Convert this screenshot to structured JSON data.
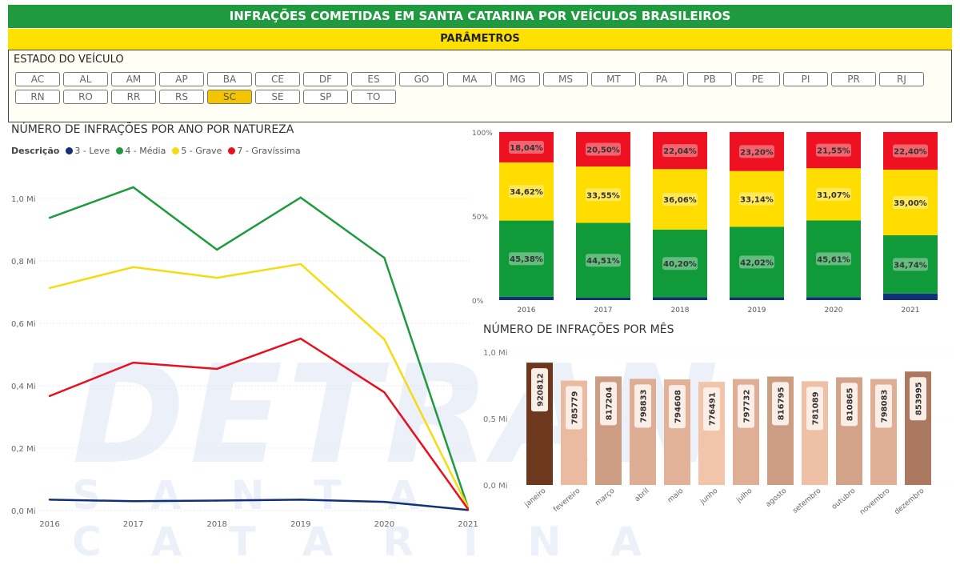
{
  "header": {
    "title": "INFRAÇÕES COMETIDAS EM SANTA CATARINA POR VEÍCULOS BRASILEIROS",
    "params": "PARÂMETROS"
  },
  "watermark": {
    "line1": "DETRAN",
    "line2": "SANTA CATARINA"
  },
  "filter": {
    "label": "ESTADO DO VEÍCULO",
    "selected": "SC",
    "states": [
      "AC",
      "AL",
      "AM",
      "AP",
      "BA",
      "CE",
      "DF",
      "ES",
      "GO",
      "MA",
      "MG",
      "MS",
      "MT",
      "PA",
      "PB",
      "PE",
      "PI",
      "PR",
      "RJ",
      "RN",
      "RO",
      "RR",
      "RS",
      "SC",
      "SE",
      "SP",
      "TO"
    ]
  },
  "colors": {
    "leve": "#12307a",
    "media": "#1f9a3e",
    "grave": "#f5dc10",
    "gravissima": "#e8101e",
    "green": "#1f9a3e",
    "yellow": "#ffe100"
  },
  "chart_data": [
    {
      "type": "line",
      "title": "NÚMERO DE INFRAÇÕES POR ANO POR NATUREZA",
      "legend_title": "Descrição",
      "legend": "top-left",
      "x": [
        "2016",
        "2017",
        "2018",
        "2019",
        "2020",
        "2021"
      ],
      "ylim": [
        0,
        1.0
      ],
      "yticks": [
        "0,0 Mi",
        "0,2 Mi",
        "0,4 Mi",
        "0,6 Mi",
        "0,8 Mi",
        "1,0 Mi"
      ],
      "grid": true,
      "unit": "Mi",
      "series": [
        {
          "name": "3 - Leve",
          "color": "#12307a",
          "values": [
            0.035,
            0.03,
            0.032,
            0.035,
            0.028,
            0.002
          ]
        },
        {
          "name": "4 - Média",
          "color": "#1f9a3e",
          "values": [
            0.938,
            1.036,
            0.836,
            1.003,
            0.81,
            0.01
          ]
        },
        {
          "name": "5 - Grave",
          "color": "#f5dc10",
          "values": [
            0.713,
            0.78,
            0.746,
            0.79,
            0.549,
            0.01
          ]
        },
        {
          "name": "7 - Gravíssima",
          "color": "#e8101e",
          "values": [
            0.367,
            0.474,
            0.454,
            0.551,
            0.379,
            0.005
          ]
        }
      ]
    },
    {
      "type": "bar",
      "stacked": "100%",
      "categories": [
        "2016",
        "2017",
        "2018",
        "2019",
        "2020",
        "2021"
      ],
      "yticks": [
        "0%",
        "50%",
        "100%"
      ],
      "series": [
        {
          "name": "3 - Leve",
          "color": "#12307a",
          "values": [
            1.96,
            1.44,
            1.7,
            1.64,
            1.77,
            3.86
          ],
          "labels": [
            "",
            "",
            "",
            "",
            "",
            ""
          ]
        },
        {
          "name": "4 - Média",
          "color": "#109a3a",
          "values": [
            45.38,
            44.51,
            40.2,
            42.02,
            45.61,
            34.74
          ],
          "labels": [
            "45,38%",
            "44,51%",
            "40,20%",
            "42,02%",
            "45,61%",
            "34,74%"
          ]
        },
        {
          "name": "5 - Grave",
          "color": "#ffdd00",
          "values": [
            34.62,
            33.55,
            36.06,
            33.14,
            31.07,
            39.0
          ],
          "labels": [
            "34,62%",
            "33,55%",
            "36,06%",
            "33,14%",
            "31,07%",
            "39,00%"
          ]
        },
        {
          "name": "7 - Gravíssima",
          "color": "#ee1122",
          "values": [
            18.04,
            20.5,
            22.04,
            23.2,
            21.55,
            22.4
          ],
          "labels": [
            "18,04%",
            "20,50%",
            "22,04%",
            "23,20%",
            "21,55%",
            "22,40%"
          ]
        }
      ]
    },
    {
      "type": "bar",
      "title": "NÚMERO DE INFRAÇÕES POR MÊS",
      "ylim": [
        0,
        1000000
      ],
      "yticks": [
        "0,0 Mi",
        "0,5 Mi",
        "1,0 Mi"
      ],
      "categories": [
        "janeiro",
        "fevereiro",
        "março",
        "abril",
        "maio",
        "junho",
        "julho",
        "agosto",
        "setembro",
        "outubro",
        "novembro",
        "dezembro"
      ],
      "values": [
        920812,
        785779,
        817204,
        798833,
        794608,
        776491,
        797732,
        816795,
        781089,
        810865,
        798083,
        853995
      ],
      "labels": [
        "920812",
        "785779",
        "817204",
        "798833",
        "794608",
        "776491",
        "797732",
        "816795",
        "781089",
        "810865",
        "798083",
        "853995"
      ]
    }
  ]
}
